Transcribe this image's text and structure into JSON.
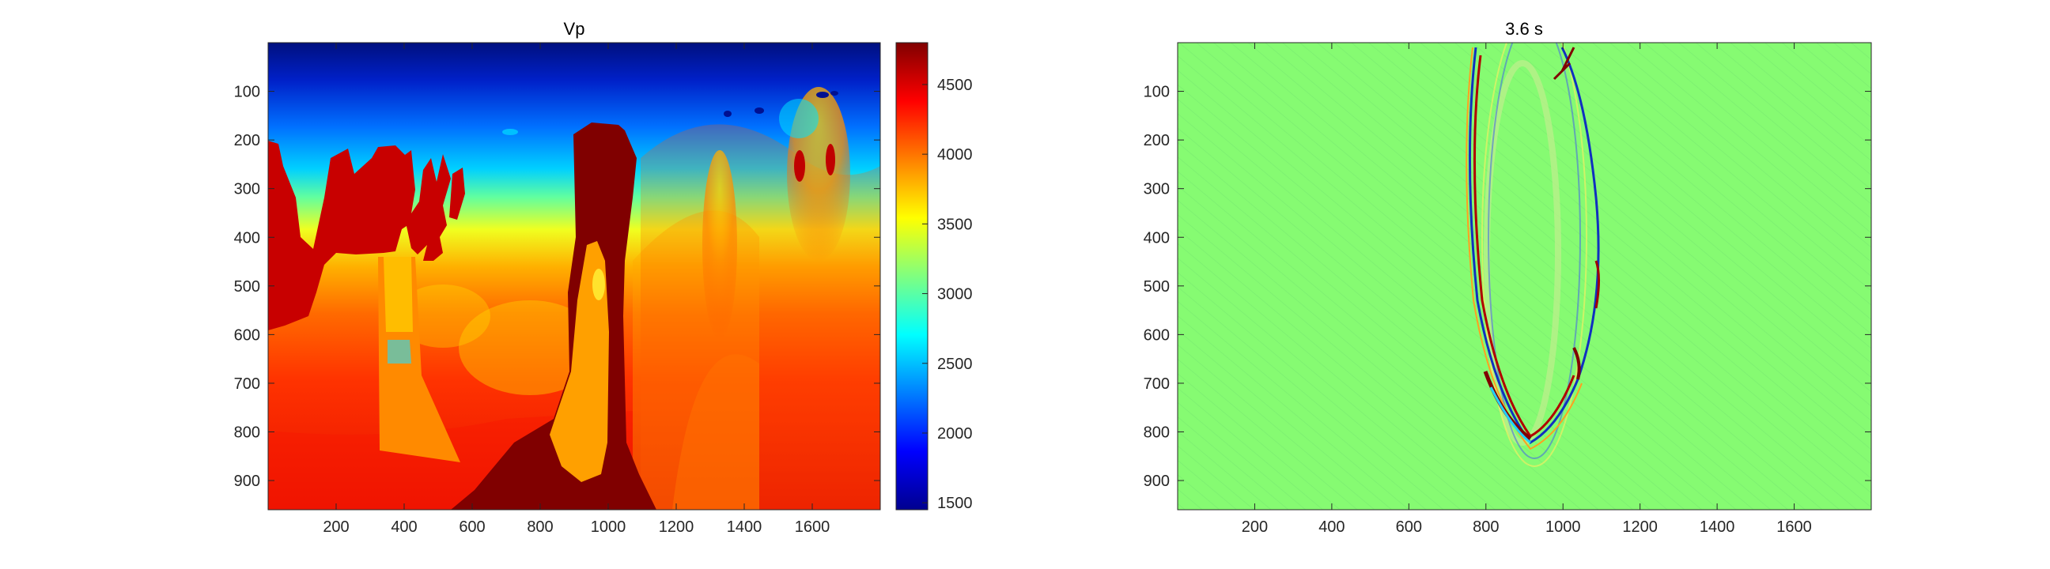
{
  "chart_data": [
    {
      "type": "heatmap",
      "title": "Vp",
      "colormap": "jet",
      "x_ticks": [
        200,
        400,
        600,
        800,
        1000,
        1200,
        1400,
        1600
      ],
      "y_ticks": [
        100,
        200,
        300,
        400,
        500,
        600,
        700,
        800,
        900
      ],
      "xlim": [
        0,
        1800
      ],
      "ylim": [
        960,
        0
      ],
      "colorbar": {
        "ticks": [
          1500,
          2000,
          2500,
          3000,
          3500,
          4000,
          4500
        ],
        "range": [
          1450,
          4800
        ]
      }
    },
    {
      "type": "heatmap",
      "title": "3.6 s",
      "colormap": "jet",
      "x_ticks": [
        200,
        400,
        600,
        800,
        1000,
        1200,
        1400,
        1600
      ],
      "y_ticks": [
        100,
        200,
        300,
        400,
        500,
        600,
        700,
        800,
        900
      ],
      "xlim": [
        0,
        1800
      ],
      "ylim": [
        960,
        0
      ]
    }
  ]
}
